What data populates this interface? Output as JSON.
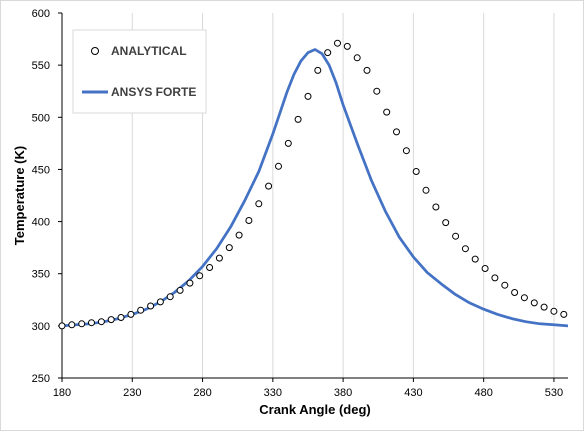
{
  "chart_data": {
    "type": "line",
    "title": "",
    "xlabel": "Crank Angle (deg)",
    "ylabel": "Temperature (K)",
    "xlim": [
      180,
      540
    ],
    "ylim": [
      250,
      600
    ],
    "x_ticks": [
      180,
      230,
      280,
      330,
      380,
      430,
      480,
      530
    ],
    "y_ticks": [
      250,
      300,
      350,
      400,
      450,
      500,
      550,
      600
    ],
    "grid": "vertical",
    "legend_position": "top-left",
    "series": [
      {
        "name": "ANALYTICAL",
        "style": "scatter-open-circle",
        "color": "#000000",
        "x": [
          180,
          187,
          194,
          201,
          208,
          215,
          222,
          229,
          236,
          243,
          250,
          257,
          264,
          271,
          278,
          285,
          292,
          299,
          306,
          313,
          320,
          327,
          334,
          341,
          348,
          355,
          362,
          369,
          376,
          383,
          390,
          397,
          404,
          411,
          418,
          425,
          432,
          439,
          446,
          453,
          460,
          467,
          474,
          481,
          488,
          495,
          502,
          509,
          516,
          523,
          530,
          537
        ],
        "y": [
          300,
          301,
          302,
          303,
          304,
          306,
          308,
          311,
          315,
          319,
          323,
          328,
          334,
          341,
          348,
          356,
          365,
          375,
          387,
          401,
          417,
          434,
          453,
          475,
          498,
          520,
          545,
          562,
          571,
          568,
          557,
          545,
          525,
          505,
          486,
          468,
          448,
          430,
          414,
          399,
          386,
          374,
          364,
          355,
          346,
          339,
          332,
          327,
          322,
          318,
          314,
          311
        ]
      },
      {
        "name": "ANSYS FORTE",
        "style": "line",
        "color": "#4472c4",
        "x": [
          180,
          190,
          200,
          210,
          220,
          230,
          240,
          250,
          260,
          270,
          280,
          290,
          300,
          310,
          320,
          330,
          335,
          340,
          345,
          350,
          355,
          360,
          365,
          370,
          375,
          380,
          390,
          400,
          410,
          420,
          430,
          440,
          450,
          460,
          470,
          480,
          490,
          500,
          510,
          520,
          530,
          540
        ],
        "y": [
          300,
          301,
          302,
          304,
          307,
          311,
          316,
          323,
          332,
          343,
          357,
          374,
          395,
          420,
          448,
          484,
          504,
          524,
          541,
          554,
          562,
          565,
          561,
          550,
          533,
          512,
          475,
          440,
          410,
          385,
          366,
          351,
          340,
          330,
          322,
          316,
          311,
          307,
          304,
          302,
          301,
          300
        ]
      }
    ]
  }
}
